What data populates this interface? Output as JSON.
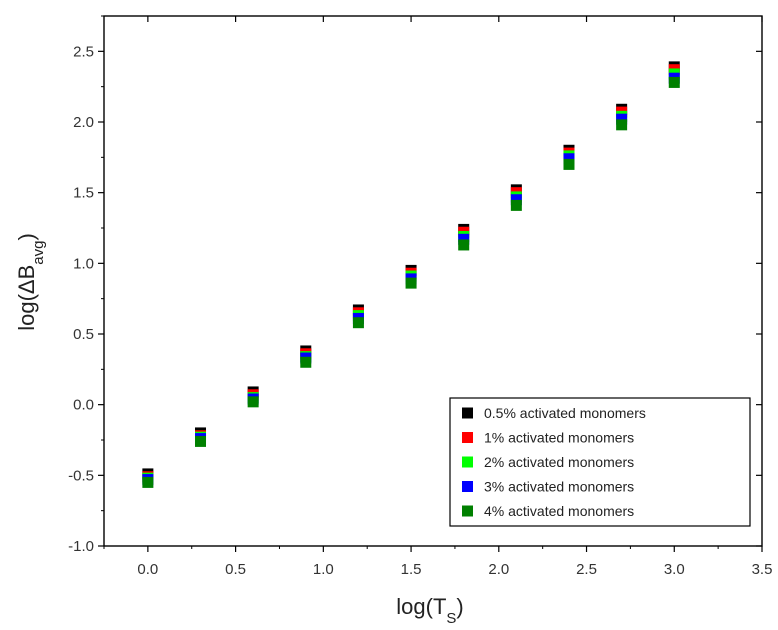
{
  "chart_data": {
    "type": "scatter",
    "title": "",
    "xlabel": "log(T",
    "xlabel_sub": "S",
    "xlabel_end": ")",
    "ylabel": "log(ΔB",
    "ylabel_sub": "avg",
    "ylabel_end": ")",
    "xlim": [
      -0.25,
      3.5
    ],
    "ylim": [
      -1.0,
      2.75
    ],
    "xticks": [
      0.0,
      0.5,
      1.0,
      1.5,
      2.0,
      2.5,
      3.0,
      3.5
    ],
    "xtick_labels": [
      "0.0",
      "0.5",
      "1.0",
      "1.5",
      "2.0",
      "2.5",
      "3.0",
      "3.5"
    ],
    "yticks": [
      -1.0,
      -0.5,
      0.0,
      0.5,
      1.0,
      1.5,
      2.0,
      2.5
    ],
    "ytick_labels": [
      "-1.0",
      "-0.5",
      "0.0",
      "0.5",
      "1.0",
      "1.5",
      "2.0",
      "2.5"
    ],
    "grid": false,
    "legend_position": "bottom-right",
    "x": [
      0.0,
      0.3,
      0.6,
      0.9,
      1.2,
      1.5,
      1.8,
      2.1,
      2.4,
      2.7,
      3.0
    ],
    "series": [
      {
        "name": "0.5% activated monomers",
        "color": "#000000",
        "values": [
          -0.49,
          -0.2,
          0.09,
          0.38,
          0.67,
          0.95,
          1.24,
          1.52,
          1.8,
          2.09,
          2.39
        ]
      },
      {
        "name": "1% activated monomers",
        "color": "#ff0000",
        "values": [
          -0.51,
          -0.22,
          0.07,
          0.36,
          0.65,
          0.93,
          1.22,
          1.5,
          1.78,
          2.07,
          2.37
        ]
      },
      {
        "name": "2% activated monomers",
        "color": "#00ff00",
        "values": [
          -0.52,
          -0.23,
          0.05,
          0.34,
          0.63,
          0.91,
          1.19,
          1.47,
          1.76,
          2.04,
          2.34
        ]
      },
      {
        "name": "3% activated monomers",
        "color": "#0000ff",
        "values": [
          -0.53,
          -0.24,
          0.04,
          0.33,
          0.61,
          0.89,
          1.17,
          1.45,
          1.74,
          2.02,
          2.31
        ]
      },
      {
        "name": "4% activated monomers",
        "color": "#008000",
        "values": [
          -0.55,
          -0.26,
          0.02,
          0.3,
          0.58,
          0.86,
          1.13,
          1.41,
          1.7,
          1.98,
          2.28
        ]
      }
    ]
  }
}
